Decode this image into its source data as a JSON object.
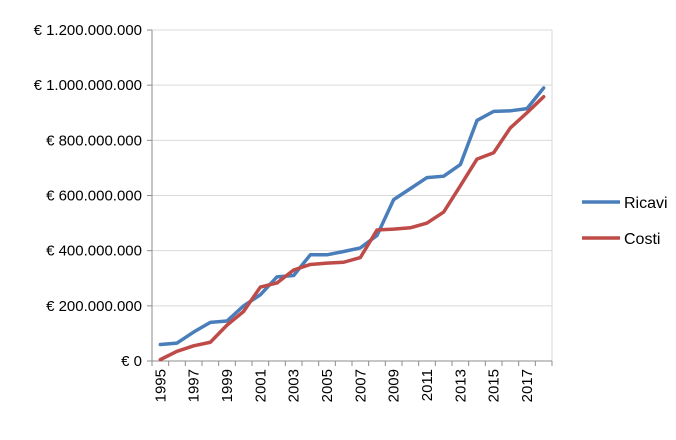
{
  "chart_data": {
    "type": "line",
    "x": [
      1995,
      1996,
      1997,
      1998,
      1999,
      2000,
      2001,
      2002,
      2003,
      2004,
      2005,
      2006,
      2007,
      2008,
      2009,
      2010,
      2011,
      2012,
      2013,
      2014,
      2015,
      2016,
      2017,
      2018
    ],
    "x_tick_labels": [
      "1995",
      "1997",
      "1999",
      "2001",
      "2003",
      "2005",
      "2007",
      "2009",
      "2011",
      "2013",
      "2015",
      "2017"
    ],
    "y_tick_labels": [
      "€ 0",
      "€ 200.000.000",
      "€ 400.000.000",
      "€ 600.000.000",
      "€ 800.000.000",
      "€ 1.000.000.000",
      "€ 1.200.000.000"
    ],
    "y_ticks": [
      0,
      200000000,
      400000000,
      600000000,
      800000000,
      1000000000,
      1200000000
    ],
    "ylim": [
      0,
      1200000000
    ],
    "grid": true,
    "legend_position": "right",
    "series": [
      {
        "name": "Ricavi",
        "color": "#4a7ebb",
        "values": [
          60000000,
          65000000,
          105000000,
          140000000,
          145000000,
          200000000,
          240000000,
          305000000,
          310000000,
          385000000,
          385000000,
          397000000,
          410000000,
          455000000,
          585000000,
          625000000,
          665000000,
          670000000,
          712000000,
          872000000,
          905000000,
          907000000,
          915000000,
          990000000
        ]
      },
      {
        "name": "Costi",
        "color": "#be4b48",
        "values": [
          5000000,
          35000000,
          55000000,
          68000000,
          130000000,
          180000000,
          268000000,
          283000000,
          330000000,
          350000000,
          355000000,
          358000000,
          375000000,
          475000000,
          478000000,
          483000000,
          500000000,
          540000000,
          635000000,
          732000000,
          755000000,
          845000000,
          900000000,
          958000000
        ]
      }
    ]
  }
}
